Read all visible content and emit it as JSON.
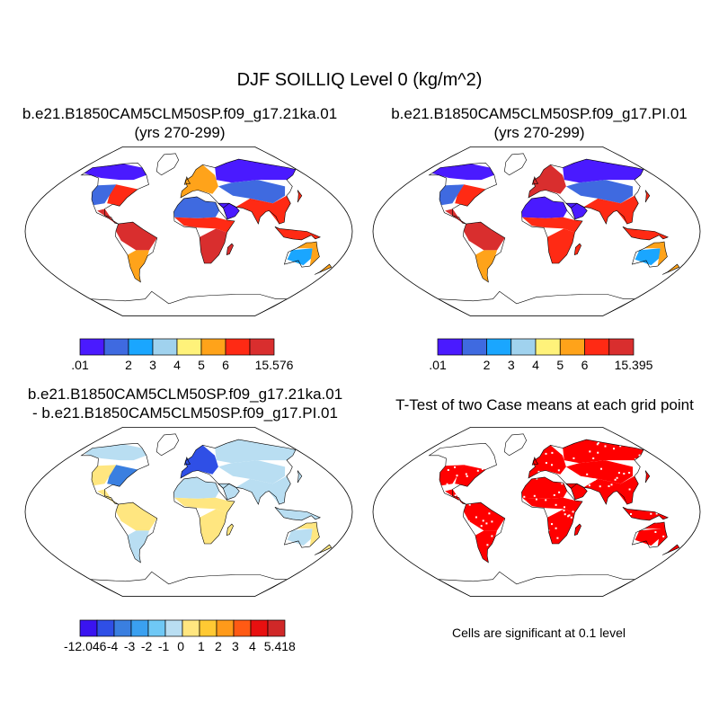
{
  "figure": {
    "title": "DJF SOILLIQ Level 0 (kg/m^2)"
  },
  "panels": [
    {
      "title_line1": "b.e21.B1850CAM5CLM50SP.f09_g17.21ka.01",
      "title_line2": "(yrs 270-299)",
      "colorbar": {
        "colors": [
          "#4a1aff",
          "#3f6ae0",
          "#1aa6ff",
          "#a0d2ee",
          "#fff27a",
          "#ffa31a",
          "#ff2a14",
          "#d92e2e"
        ],
        "labels": [
          ".01",
          "2",
          "3",
          "4",
          "5",
          "6",
          "15.576"
        ],
        "label_positions": [
          0,
          2,
          3,
          4,
          5,
          6,
          8
        ]
      }
    },
    {
      "title_line1": "b.e21.B1850CAM5CLM50SP.f09_g17.PI.01",
      "title_line2": "(yrs 270-299)",
      "colorbar": {
        "colors": [
          "#4a1aff",
          "#3f6ae0",
          "#1aa6ff",
          "#a0d2ee",
          "#fff27a",
          "#ffa31a",
          "#ff2a14",
          "#d92e2e"
        ],
        "labels": [
          ".01",
          "2",
          "3",
          "4",
          "5",
          "6",
          "15.395"
        ],
        "label_positions": [
          0,
          2,
          3,
          4,
          5,
          6,
          8
        ]
      }
    },
    {
      "title_line1": "b.e21.B1850CAM5CLM50SP.f09_g17.21ka.01",
      "title_line2": "- b.e21.B1850CAM5CLM50SP.f09_g17.PI.01",
      "colorbar": {
        "colors": [
          "#3a14f0",
          "#2f4fe6",
          "#3a7fe0",
          "#3aa0f0",
          "#6fc8f5",
          "#b9def2",
          "#ffe680",
          "#ffc933",
          "#ff9a1a",
          "#ff5a14",
          "#e81010",
          "#d02828"
        ],
        "labels": [
          "-12.046",
          "-4",
          "-3",
          "-2",
          "-1",
          "0",
          "1",
          "2",
          "3",
          "4",
          "5.418"
        ],
        "label_positions": [
          0.3,
          1.9,
          2.9,
          3.9,
          4.9,
          5.9,
          7.1,
          8.1,
          9.1,
          10.1,
          11.7
        ]
      }
    },
    {
      "title_line1": "T-Test of two Case means at each grid point",
      "note": "Cells are significant at 0.1 level",
      "sig_color": "#ff0000"
    }
  ],
  "map_colors": {
    "coast": "#000000",
    "frame": "#000000"
  }
}
